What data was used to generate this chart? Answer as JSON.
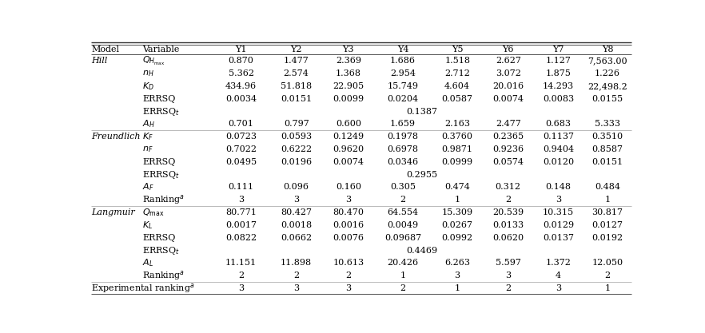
{
  "header": [
    "Model",
    "Variable",
    "Y1",
    "Y2",
    "Y3",
    "Y4",
    "Y5",
    "Y6",
    "Y7",
    "Y8"
  ],
  "rows": [
    [
      "Hill",
      "Q_{H_{\\rm max}}",
      "0.870",
      "1.477",
      "2.369",
      "1.686",
      "1.518",
      "2.627",
      "1.127",
      "7,563.00"
    ],
    [
      "",
      "n_{H}",
      "5.362",
      "2.574",
      "1.368",
      "2.954",
      "2.712",
      "3.072",
      "1.875",
      "1.226"
    ],
    [
      "",
      "K_{D}",
      "434.96",
      "51.818",
      "22.905",
      "15.749",
      "4.604",
      "20.016",
      "14.293",
      "22,498.2"
    ],
    [
      "",
      "ERRSQ",
      "0.0034",
      "0.0151",
      "0.0099",
      "0.0204",
      "0.0587",
      "0.0074",
      "0.0083",
      "0.0155"
    ],
    [
      "",
      "ERRSQ_t",
      "",
      "",
      "",
      "",
      "0.1387",
      "",
      "",
      ""
    ],
    [
      "",
      "A_{H}",
      "0.701",
      "0.797",
      "0.600",
      "1.659",
      "2.163",
      "2.477",
      "0.683",
      "5.333"
    ],
    [
      "Freundlich",
      "K_{F}",
      "0.0723",
      "0.0593",
      "0.1249",
      "0.1978",
      "0.3760",
      "0.2365",
      "0.1137",
      "0.3510"
    ],
    [
      "",
      "n_{F}",
      "0.7022",
      "0.6222",
      "0.9620",
      "0.6978",
      "0.9871",
      "0.9236",
      "0.9404",
      "0.8587"
    ],
    [
      "",
      "ERRSQ",
      "0.0495",
      "0.0196",
      "0.0074",
      "0.0346",
      "0.0999",
      "0.0574",
      "0.0120",
      "0.0151"
    ],
    [
      "",
      "ERRSQ_t",
      "",
      "",
      "",
      "",
      "0.2955",
      "",
      "",
      ""
    ],
    [
      "",
      "A_{F}",
      "0.111",
      "0.096",
      "0.160",
      "0.305",
      "0.474",
      "0.312",
      "0.148",
      "0.484"
    ],
    [
      "",
      "Ranking^{a}",
      "3",
      "3",
      "3",
      "2",
      "1",
      "2",
      "3",
      "1"
    ],
    [
      "Langmuir",
      "Q_{\\rm max}",
      "80.771",
      "80.427",
      "80.470",
      "64.554",
      "15.309",
      "20.539",
      "10.315",
      "30.817"
    ],
    [
      "",
      "K_{L}",
      "0.0017",
      "0.0018",
      "0.0016",
      "0.0049",
      "0.0267",
      "0.0133",
      "0.0129",
      "0.0127"
    ],
    [
      "",
      "ERRSQ",
      "0.0822",
      "0.0662",
      "0.0076",
      "0.09687",
      "0.0992",
      "0.0620",
      "0.0137",
      "0.0192"
    ],
    [
      "",
      "ERRSQ_t",
      "",
      "",
      "",
      "",
      "0.4469",
      "",
      "",
      ""
    ],
    [
      "",
      "A_{L}",
      "11.151",
      "11.898",
      "10.613",
      "20.426",
      "6.263",
      "5.597",
      "1.372",
      "12.050"
    ],
    [
      "",
      "Ranking^{a}",
      "2",
      "2",
      "2",
      "1",
      "3",
      "3",
      "4",
      "2"
    ],
    [
      "Experimental ranking^{a}",
      "",
      "3",
      "3",
      "3",
      "2",
      "1",
      "2",
      "3",
      "1"
    ]
  ],
  "var_display": {
    "Q_{H_{\\rm max}}": "$Q_{H_{\\rm max}}$",
    "n_{H}": "$n_{H}$",
    "K_{D}": "$K_{D}$",
    "ERRSQ": "ERRSQ",
    "ERRSQ_t": "ERRSQ$_t$",
    "A_{H}": "$A_{H}$",
    "K_{F}": "$K_{F}$",
    "n_{F}": "$n_{F}$",
    "A_{F}": "$A_{F}$",
    "Ranking^{a}": "Ranking$^{a}$",
    "Q_{\\rm max}": "$Q_{\\rm max}$",
    "K_{L}": "$K_{L}$",
    "A_{L}": "$A_{L}$",
    "": ""
  },
  "fontsize": 8.0,
  "bg_color": "#ffffff",
  "text_color": "#000000",
  "line_color": "#555555",
  "top_line_color": "#333333"
}
